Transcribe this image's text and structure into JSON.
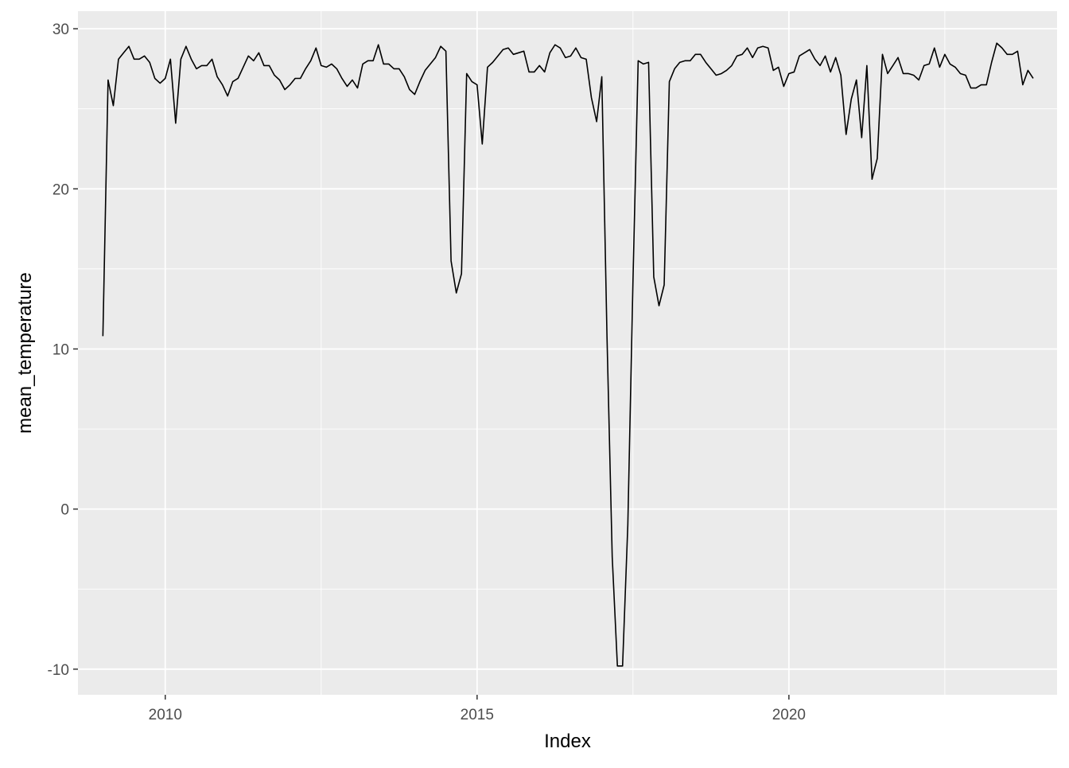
{
  "chart_data": {
    "type": "line",
    "title": "",
    "xlabel": "Index",
    "ylabel": "mean_temperature",
    "xlim": [
      2008.6,
      2024.3
    ],
    "ylim": [
      -11.6,
      31.1
    ],
    "x_ticks": [
      2010,
      2015,
      2020
    ],
    "x_tick_labels": [
      "2010",
      "2015",
      "2020"
    ],
    "y_ticks": [
      -10,
      0,
      10,
      20,
      30
    ],
    "y_tick_labels": [
      "-10",
      "0",
      "10",
      "20",
      "30"
    ],
    "grid": true,
    "legend": "none",
    "colors": {
      "panel": "#ebebeb",
      "grid": "#ffffff",
      "line": "#000000",
      "tick_text": "#4d4d4d",
      "title_text": "#000000"
    },
    "series": [
      {
        "x": [
          2009.0,
          2009.083,
          2009.167,
          2009.25,
          2009.333,
          2009.417,
          2009.5,
          2009.583,
          2009.667,
          2009.75,
          2009.833,
          2009.917,
          2010.0,
          2010.083,
          2010.167,
          2010.25,
          2010.333,
          2010.417,
          2010.5,
          2010.583,
          2010.667,
          2010.75,
          2010.833,
          2010.917,
          2011.0,
          2011.083,
          2011.167,
          2011.25,
          2011.333,
          2011.417,
          2011.5,
          2011.583,
          2011.667,
          2011.75,
          2011.833,
          2011.917,
          2012.0,
          2012.083,
          2012.167,
          2012.25,
          2012.333,
          2012.417,
          2012.5,
          2012.583,
          2012.667,
          2012.75,
          2012.833,
          2012.917,
          2013.0,
          2013.083,
          2013.167,
          2013.25,
          2013.333,
          2013.417,
          2013.5,
          2013.583,
          2013.667,
          2013.75,
          2013.833,
          2013.917,
          2014.0,
          2014.083,
          2014.167,
          2014.25,
          2014.333,
          2014.417,
          2014.5,
          2014.583,
          2014.667,
          2014.75,
          2014.833,
          2014.917,
          2015.0,
          2015.083,
          2015.167,
          2015.25,
          2015.333,
          2015.417,
          2015.5,
          2015.583,
          2015.667,
          2015.75,
          2015.833,
          2015.917,
          2016.0,
          2016.083,
          2016.167,
          2016.25,
          2016.333,
          2016.417,
          2016.5,
          2016.583,
          2016.667,
          2016.75,
          2016.833,
          2016.917,
          2017.0,
          2017.083,
          2017.167,
          2017.25,
          2017.333,
          2017.417,
          2017.5,
          2017.583,
          2017.667,
          2017.75,
          2017.833,
          2017.917,
          2018.0,
          2018.083,
          2018.167,
          2018.25,
          2018.333,
          2018.417,
          2018.5,
          2018.583,
          2018.667,
          2018.75,
          2018.833,
          2018.917,
          2019.0,
          2019.083,
          2019.167,
          2019.25,
          2019.333,
          2019.417,
          2019.5,
          2019.583,
          2019.667,
          2019.75,
          2019.833,
          2019.917,
          2020.0,
          2020.083,
          2020.167,
          2020.25,
          2020.333,
          2020.417,
          2020.5,
          2020.583,
          2020.667,
          2020.75,
          2020.833,
          2020.917,
          2021.0,
          2021.083,
          2021.167,
          2021.25,
          2021.333,
          2021.417,
          2021.5,
          2021.583,
          2021.667,
          2021.75,
          2021.833,
          2021.917,
          2022.0,
          2022.083,
          2022.167,
          2022.25,
          2022.333,
          2022.417,
          2022.5,
          2022.583,
          2022.667,
          2022.75,
          2022.833,
          2022.917,
          2023.0,
          2023.083,
          2023.167,
          2023.25,
          2023.333,
          2023.417,
          2023.5,
          2023.583,
          2023.667,
          2023.75,
          2023.833,
          2023.917
        ],
        "y": [
          10.8,
          26.8,
          25.2,
          28.1,
          28.5,
          28.9,
          28.1,
          28.1,
          28.3,
          27.9,
          26.9,
          26.6,
          26.9,
          28.1,
          24.1,
          28.1,
          28.9,
          28.1,
          27.5,
          27.7,
          27.7,
          28.1,
          27.0,
          26.5,
          25.8,
          26.7,
          26.9,
          27.6,
          28.3,
          28.0,
          28.5,
          27.7,
          27.7,
          27.1,
          26.8,
          26.2,
          26.5,
          26.9,
          26.9,
          27.5,
          28.0,
          28.8,
          27.7,
          27.6,
          27.8,
          27.5,
          26.9,
          26.4,
          26.8,
          26.3,
          27.8,
          28.0,
          28.0,
          29.0,
          27.8,
          27.8,
          27.5,
          27.5,
          27.0,
          26.2,
          25.9,
          26.7,
          27.4,
          27.8,
          28.2,
          28.9,
          28.6,
          15.5,
          13.5,
          14.7,
          27.2,
          26.7,
          26.5,
          22.8,
          27.6,
          27.9,
          28.3,
          28.7,
          28.8,
          28.4,
          28.5,
          28.6,
          27.3,
          27.3,
          27.7,
          27.3,
          28.5,
          29.0,
          28.8,
          28.2,
          28.3,
          28.8,
          28.2,
          28.1,
          25.7,
          24.2,
          27.0,
          10.8,
          -3.0,
          -9.8,
          -9.8,
          -1.0,
          14.3,
          28.0,
          27.8,
          27.9,
          14.5,
          12.7,
          14.0,
          26.7,
          27.5,
          27.9,
          28.0,
          28.0,
          28.4,
          28.4,
          27.9,
          27.5,
          27.1,
          27.2,
          27.4,
          27.7,
          28.3,
          28.4,
          28.8,
          28.2,
          28.8,
          28.9,
          28.8,
          27.4,
          27.6,
          26.4,
          27.2,
          27.3,
          28.3,
          28.5,
          28.7,
          28.1,
          27.7,
          28.3,
          27.3,
          28.2,
          27.1,
          23.4,
          25.6,
          26.8,
          23.2,
          27.7,
          20.6,
          21.9,
          28.4,
          27.2,
          27.7,
          28.2,
          27.2,
          27.2,
          27.1,
          26.8,
          27.7,
          27.8,
          28.8,
          27.6,
          28.4,
          27.8,
          27.6,
          27.2,
          27.1,
          26.3,
          26.3,
          26.5,
          26.5,
          27.9,
          29.1,
          28.8,
          28.4,
          28.4,
          28.6,
          26.5,
          27.4,
          26.9
        ]
      }
    ]
  }
}
